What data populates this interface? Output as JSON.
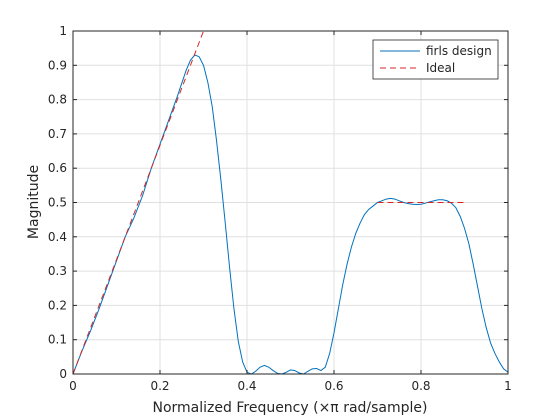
{
  "chart_data": {
    "type": "line",
    "title": "",
    "xlabel": "Normalized Frequency (×π rad/sample)",
    "ylabel": "Magnitude",
    "xlim": [
      0,
      1
    ],
    "ylim": [
      0,
      1
    ],
    "x_ticks": [
      "0",
      "0.2",
      "0.4",
      "0.6",
      "0.8",
      "1"
    ],
    "y_ticks": [
      "0",
      "0.1",
      "0.2",
      "0.3",
      "0.4",
      "0.5",
      "0.6",
      "0.7",
      "0.8",
      "0.9",
      "1"
    ],
    "grid": true,
    "legend_position": "top-right",
    "series": [
      {
        "name": "firls design",
        "color": "#0072bd",
        "style": "solid",
        "x": [
          0,
          0.02,
          0.04,
          0.06,
          0.08,
          0.1,
          0.12,
          0.14,
          0.16,
          0.18,
          0.2,
          0.22,
          0.24,
          0.26,
          0.27,
          0.28,
          0.29,
          0.3,
          0.31,
          0.32,
          0.33,
          0.34,
          0.35,
          0.36,
          0.37,
          0.38,
          0.39,
          0.4,
          0.41,
          0.42,
          0.43,
          0.44,
          0.45,
          0.46,
          0.47,
          0.48,
          0.49,
          0.5,
          0.51,
          0.52,
          0.53,
          0.54,
          0.55,
          0.56,
          0.57,
          0.58,
          0.59,
          0.6,
          0.61,
          0.62,
          0.63,
          0.64,
          0.65,
          0.66,
          0.67,
          0.68,
          0.69,
          0.7,
          0.71,
          0.72,
          0.73,
          0.74,
          0.75,
          0.76,
          0.77,
          0.78,
          0.79,
          0.8,
          0.81,
          0.82,
          0.83,
          0.84,
          0.85,
          0.86,
          0.87,
          0.88,
          0.89,
          0.9,
          0.91,
          0.92,
          0.93,
          0.94,
          0.95,
          0.96,
          0.97,
          0.98,
          0.99,
          1.0
        ],
        "y": [
          0.0,
          0.065,
          0.125,
          0.19,
          0.26,
          0.33,
          0.4,
          0.455,
          0.52,
          0.6,
          0.67,
          0.74,
          0.81,
          0.885,
          0.915,
          0.93,
          0.925,
          0.9,
          0.85,
          0.78,
          0.68,
          0.565,
          0.44,
          0.31,
          0.19,
          0.095,
          0.035,
          0.005,
          0.0,
          0.008,
          0.02,
          0.025,
          0.02,
          0.01,
          0.002,
          0.0,
          0.005,
          0.012,
          0.01,
          0.003,
          0.0,
          0.008,
          0.015,
          0.016,
          0.01,
          0.02,
          0.06,
          0.12,
          0.19,
          0.26,
          0.32,
          0.37,
          0.41,
          0.44,
          0.465,
          0.48,
          0.49,
          0.5,
          0.505,
          0.51,
          0.512,
          0.51,
          0.505,
          0.5,
          0.497,
          0.495,
          0.494,
          0.495,
          0.498,
          0.502,
          0.505,
          0.508,
          0.508,
          0.505,
          0.498,
          0.485,
          0.46,
          0.425,
          0.38,
          0.32,
          0.255,
          0.19,
          0.135,
          0.09,
          0.06,
          0.035,
          0.015,
          0.005
        ]
      },
      {
        "name": "Ideal",
        "color": "#d62728",
        "style": "dashed",
        "x": [
          0,
          0.3
        ],
        "y": [
          0,
          1.0
        ],
        "x2": [
          0.7,
          0.9
        ],
        "y2": [
          0.5,
          0.5
        ]
      }
    ]
  }
}
